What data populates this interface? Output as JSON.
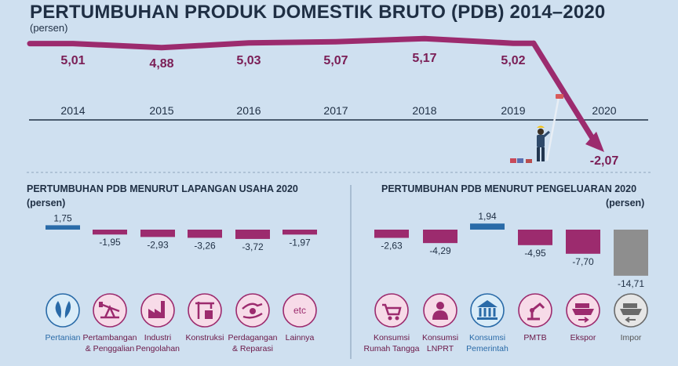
{
  "title": "PERTUMBUHAN PRODUK DOMESTIK BRUTO (PDB) 2014–2020",
  "unit_label": "(persen)",
  "colors": {
    "purple": "#9c2b6e",
    "blue": "#2a6ba8",
    "gray": "#8e8e8e",
    "dark": "#1f2f44",
    "background": "#cfe0f0"
  },
  "chart_data": [
    {
      "type": "line",
      "title": "PERTUMBUHAN PRODUK DOMESTIK BRUTO (PDB) 2014–2020",
      "ylabel": "(persen)",
      "x": [
        "2014",
        "2015",
        "2016",
        "2017",
        "2018",
        "2019",
        "2020"
      ],
      "values": [
        5.01,
        4.88,
        5.03,
        5.07,
        5.17,
        5.02,
        -2.07
      ],
      "value_labels": [
        "5,01",
        "4,88",
        "5,03",
        "5,07",
        "5,17",
        "5,02",
        "-2,07"
      ]
    },
    {
      "type": "bar",
      "title": "PERTUMBUHAN PDB MENURUT LAPANGAN USAHA 2020",
      "ylabel": "(persen)",
      "categories": [
        "Pertanian",
        "Pertambangan & Penggalian",
        "Industri Pengolahan",
        "Konstruksi",
        "Perdagangan & Reparasi",
        "Lainnya"
      ],
      "category_labels": [
        [
          "Pertanian"
        ],
        [
          "Pertambangan",
          "& Penggalian"
        ],
        [
          "Industri",
          "Pengolahan"
        ],
        [
          "Konstruksi"
        ],
        [
          "Perdagangan",
          "& Reparasi"
        ],
        [
          "Lainnya"
        ]
      ],
      "icons": [
        "leaf-icon",
        "oil-pump-icon",
        "factory-icon",
        "crane-icon",
        "trade-hands-icon",
        "etc-icon"
      ],
      "values": [
        1.75,
        -1.95,
        -2.93,
        -3.26,
        -3.72,
        -1.97
      ],
      "value_labels": [
        "1,75",
        "-1,95",
        "-2,93",
        "-3,26",
        "-3,72",
        "-1,97"
      ]
    },
    {
      "type": "bar",
      "title": "PERTUMBUHAN PDB MENURUT PENGELUARAN 2020",
      "ylabel": "(persen)",
      "categories": [
        "Konsumsi Rumah Tangga",
        "Konsumsi LNPRT",
        "Konsumsi Pemerintah",
        "PMTB",
        "Ekspor",
        "Impor"
      ],
      "category_labels": [
        [
          "Konsumsi",
          "Rumah Tangga"
        ],
        [
          "Konsumsi",
          "LNPRT"
        ],
        [
          "Konsumsi",
          "Pemerintah"
        ],
        [
          "PMTB"
        ],
        [
          "Ekspor"
        ],
        [
          "Impor"
        ]
      ],
      "icons": [
        "shopping-icon",
        "person-icon",
        "government-building-icon",
        "robot-arm-icon",
        "export-ship-icon",
        "import-ship-icon"
      ],
      "values": [
        -2.63,
        -4.29,
        1.94,
        -4.95,
        -7.7,
        -14.71
      ],
      "value_labels": [
        "-2,63",
        "-4,29",
        "1,94",
        "-4,95",
        "-7,70",
        "-14,71"
      ]
    }
  ]
}
